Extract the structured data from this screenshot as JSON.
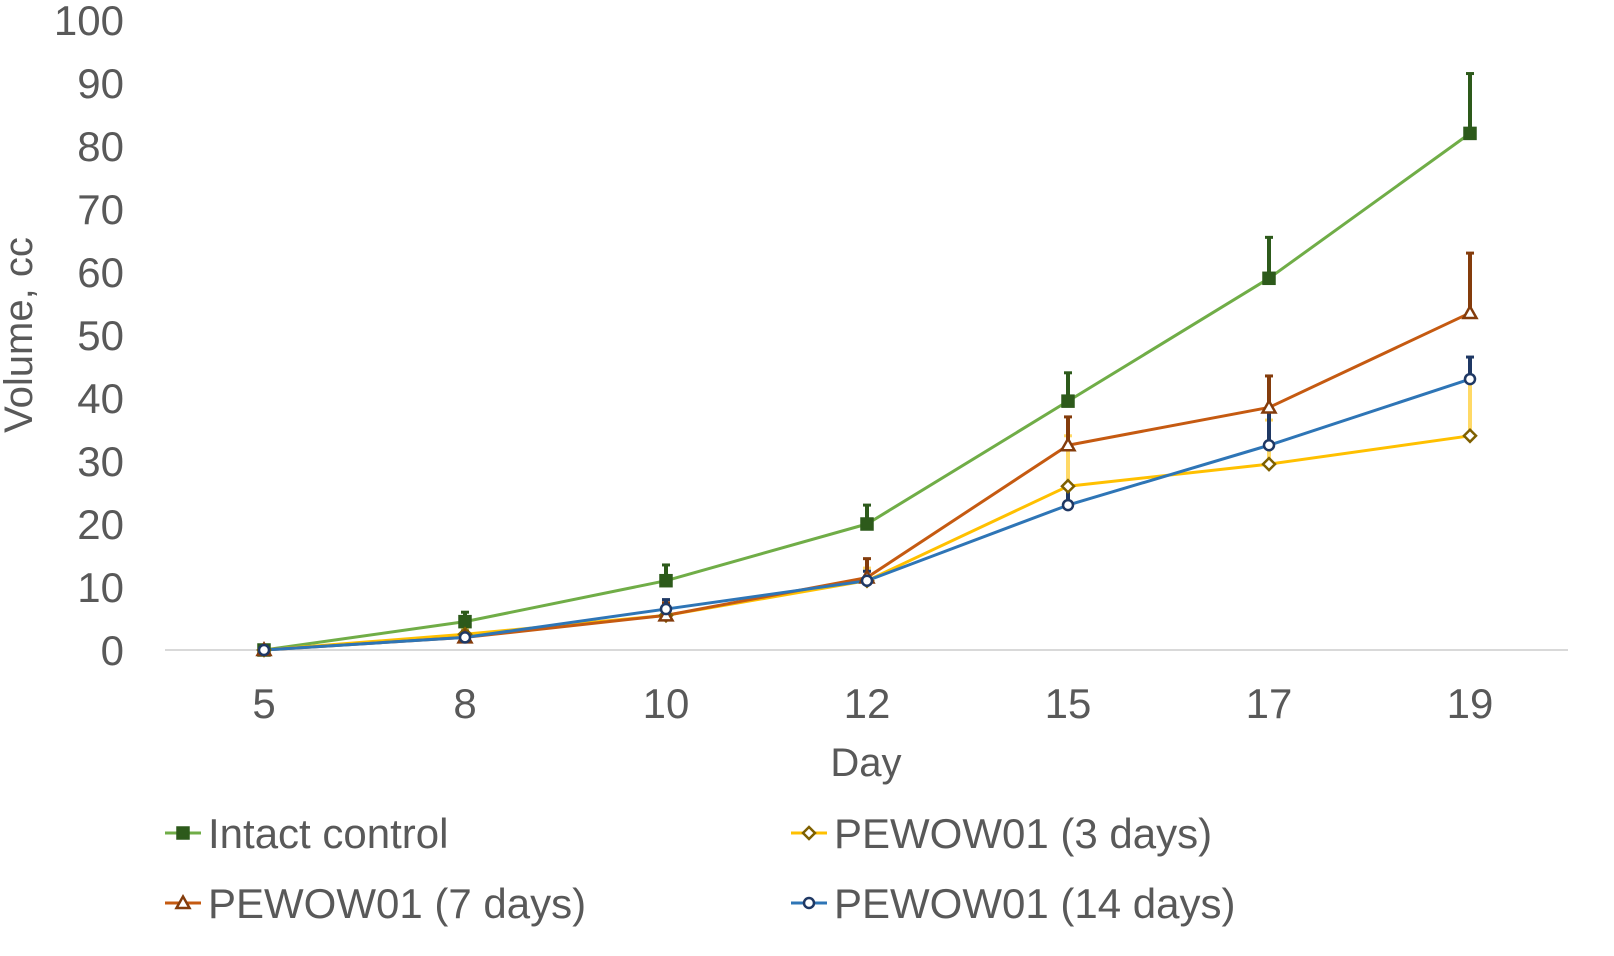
{
  "chart_data": {
    "type": "line",
    "title": "",
    "xlabel": "Day",
    "ylabel": "Volume, cc",
    "categories": [
      "5",
      "8",
      "10",
      "12",
      "15",
      "17",
      "19"
    ],
    "ylim": [
      0,
      100
    ],
    "yticks": [
      "0",
      "10",
      "20",
      "30",
      "40",
      "50",
      "60",
      "70",
      "80",
      "90",
      "100"
    ],
    "grid": false,
    "legend_position": "bottom",
    "series": [
      {
        "name": "Intact control",
        "color": "#70ad47",
        "marker_color": "#2d5a1b",
        "marker": "square",
        "values": [
          0,
          4.5,
          11,
          20,
          39.5,
          59,
          82
        ],
        "error_plus": [
          0,
          1.5,
          2.5,
          3,
          4.5,
          6.5,
          9.5
        ]
      },
      {
        "name": "PEWOW01 (3 days)",
        "color": "#ffc000",
        "marker_color": "#7f6000",
        "errbar_color": "#ffd966",
        "marker": "diamond",
        "values": [
          0,
          2.5,
          5.5,
          11,
          26,
          29.5,
          34
        ],
        "error_plus": [
          0,
          1,
          1.5,
          2,
          8,
          7,
          9
        ]
      },
      {
        "name": "PEWOW01 (7 days)",
        "color": "#c55a11",
        "marker_color": "#843c0c",
        "marker": "triangle",
        "values": [
          0,
          2,
          5.5,
          11.5,
          32.5,
          38.5,
          53.5
        ],
        "error_plus": [
          0,
          1,
          2,
          3,
          4.5,
          5,
          9.5
        ]
      },
      {
        "name": "PEWOW01 (14 days)",
        "color": "#2e75b6",
        "marker_color": "#1f3864",
        "marker": "circle",
        "values": [
          0,
          2,
          6.5,
          11,
          23,
          32.5,
          43
        ],
        "error_plus": [
          0,
          1,
          1.5,
          1.5,
          3,
          5.5,
          3.5
        ]
      }
    ]
  }
}
